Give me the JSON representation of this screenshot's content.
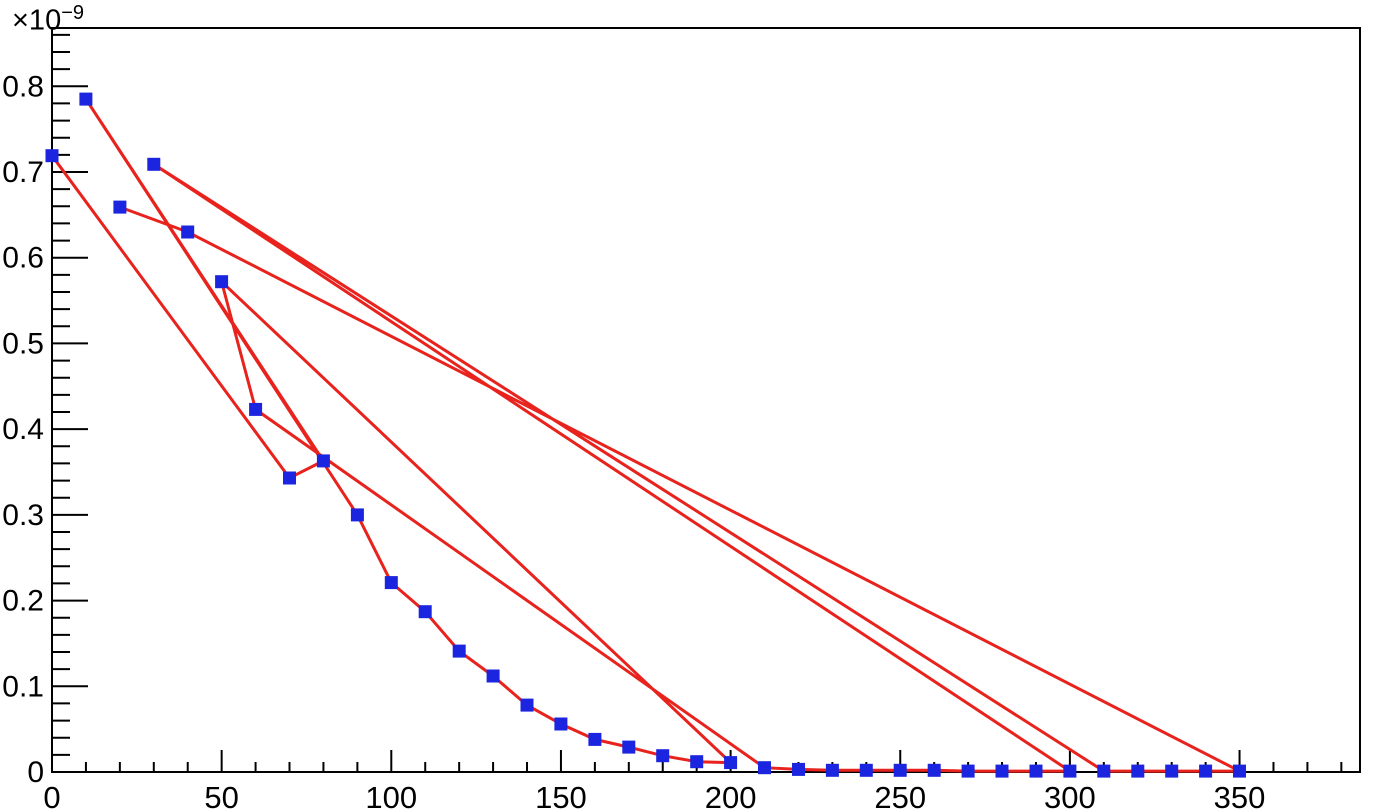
{
  "chart_data": {
    "type": "line",
    "title": "",
    "xlabel": "",
    "ylabel": "",
    "exponent_prefix": "×10",
    "exponent_value": "−9",
    "x": [
      0,
      10,
      20,
      30,
      40,
      50,
      60,
      70,
      80,
      90,
      100,
      110,
      120,
      130,
      140,
      150,
      160,
      170,
      180,
      190,
      200,
      210,
      220,
      230,
      240,
      250,
      260,
      270,
      280,
      290,
      300,
      310,
      320,
      330,
      340,
      350
    ],
    "y_values_1e9": [
      0.719,
      0.785,
      0.659,
      0.709,
      0.63,
      0.572,
      0.423,
      0.343,
      0.363,
      0.3,
      0.221,
      0.187,
      0.141,
      0.112,
      0.078,
      0.056,
      0.038,
      0.029,
      0.019,
      0.012,
      0.011,
      0.005,
      0.003,
      0.002,
      0.002,
      0.002,
      0.002,
      0.001,
      0.001,
      0.001,
      0.001,
      0.001,
      0.001,
      0.001,
      0.001,
      0.001
    ],
    "draw_order_x": [
      0,
      70,
      80,
      10,
      90,
      100,
      110,
      120,
      130,
      140,
      150,
      160,
      170,
      180,
      190,
      200,
      50,
      60,
      210,
      220,
      230,
      240,
      250,
      260,
      270,
      280,
      290,
      300,
      30,
      310,
      320,
      330,
      340,
      350,
      40,
      20
    ],
    "x_axis": {
      "min": 0,
      "max": 385.5,
      "major_tick_values": [
        0,
        50,
        100,
        150,
        200,
        250,
        300,
        350
      ],
      "major_tick_labels": [
        "0",
        "50",
        "100",
        "150",
        "200",
        "250",
        "300",
        "350"
      ],
      "minor_step": 10
    },
    "y_axis": {
      "min": 0,
      "max": 0.868,
      "unit": "1e-9",
      "major_tick_values": [
        0,
        0.1,
        0.2,
        0.3,
        0.4,
        0.5,
        0.6,
        0.7,
        0.8
      ],
      "major_tick_labels": [
        "0",
        "0.1",
        "0.2",
        "0.3",
        "0.4",
        "0.5",
        "0.6",
        "0.7",
        "0.8"
      ],
      "minor_step": 0.02
    },
    "legend": null,
    "grid": false,
    "line_color": "#e8231d",
    "marker_color": "#1b24de",
    "frame_color": "#000000",
    "background_color": "#ffffff"
  }
}
